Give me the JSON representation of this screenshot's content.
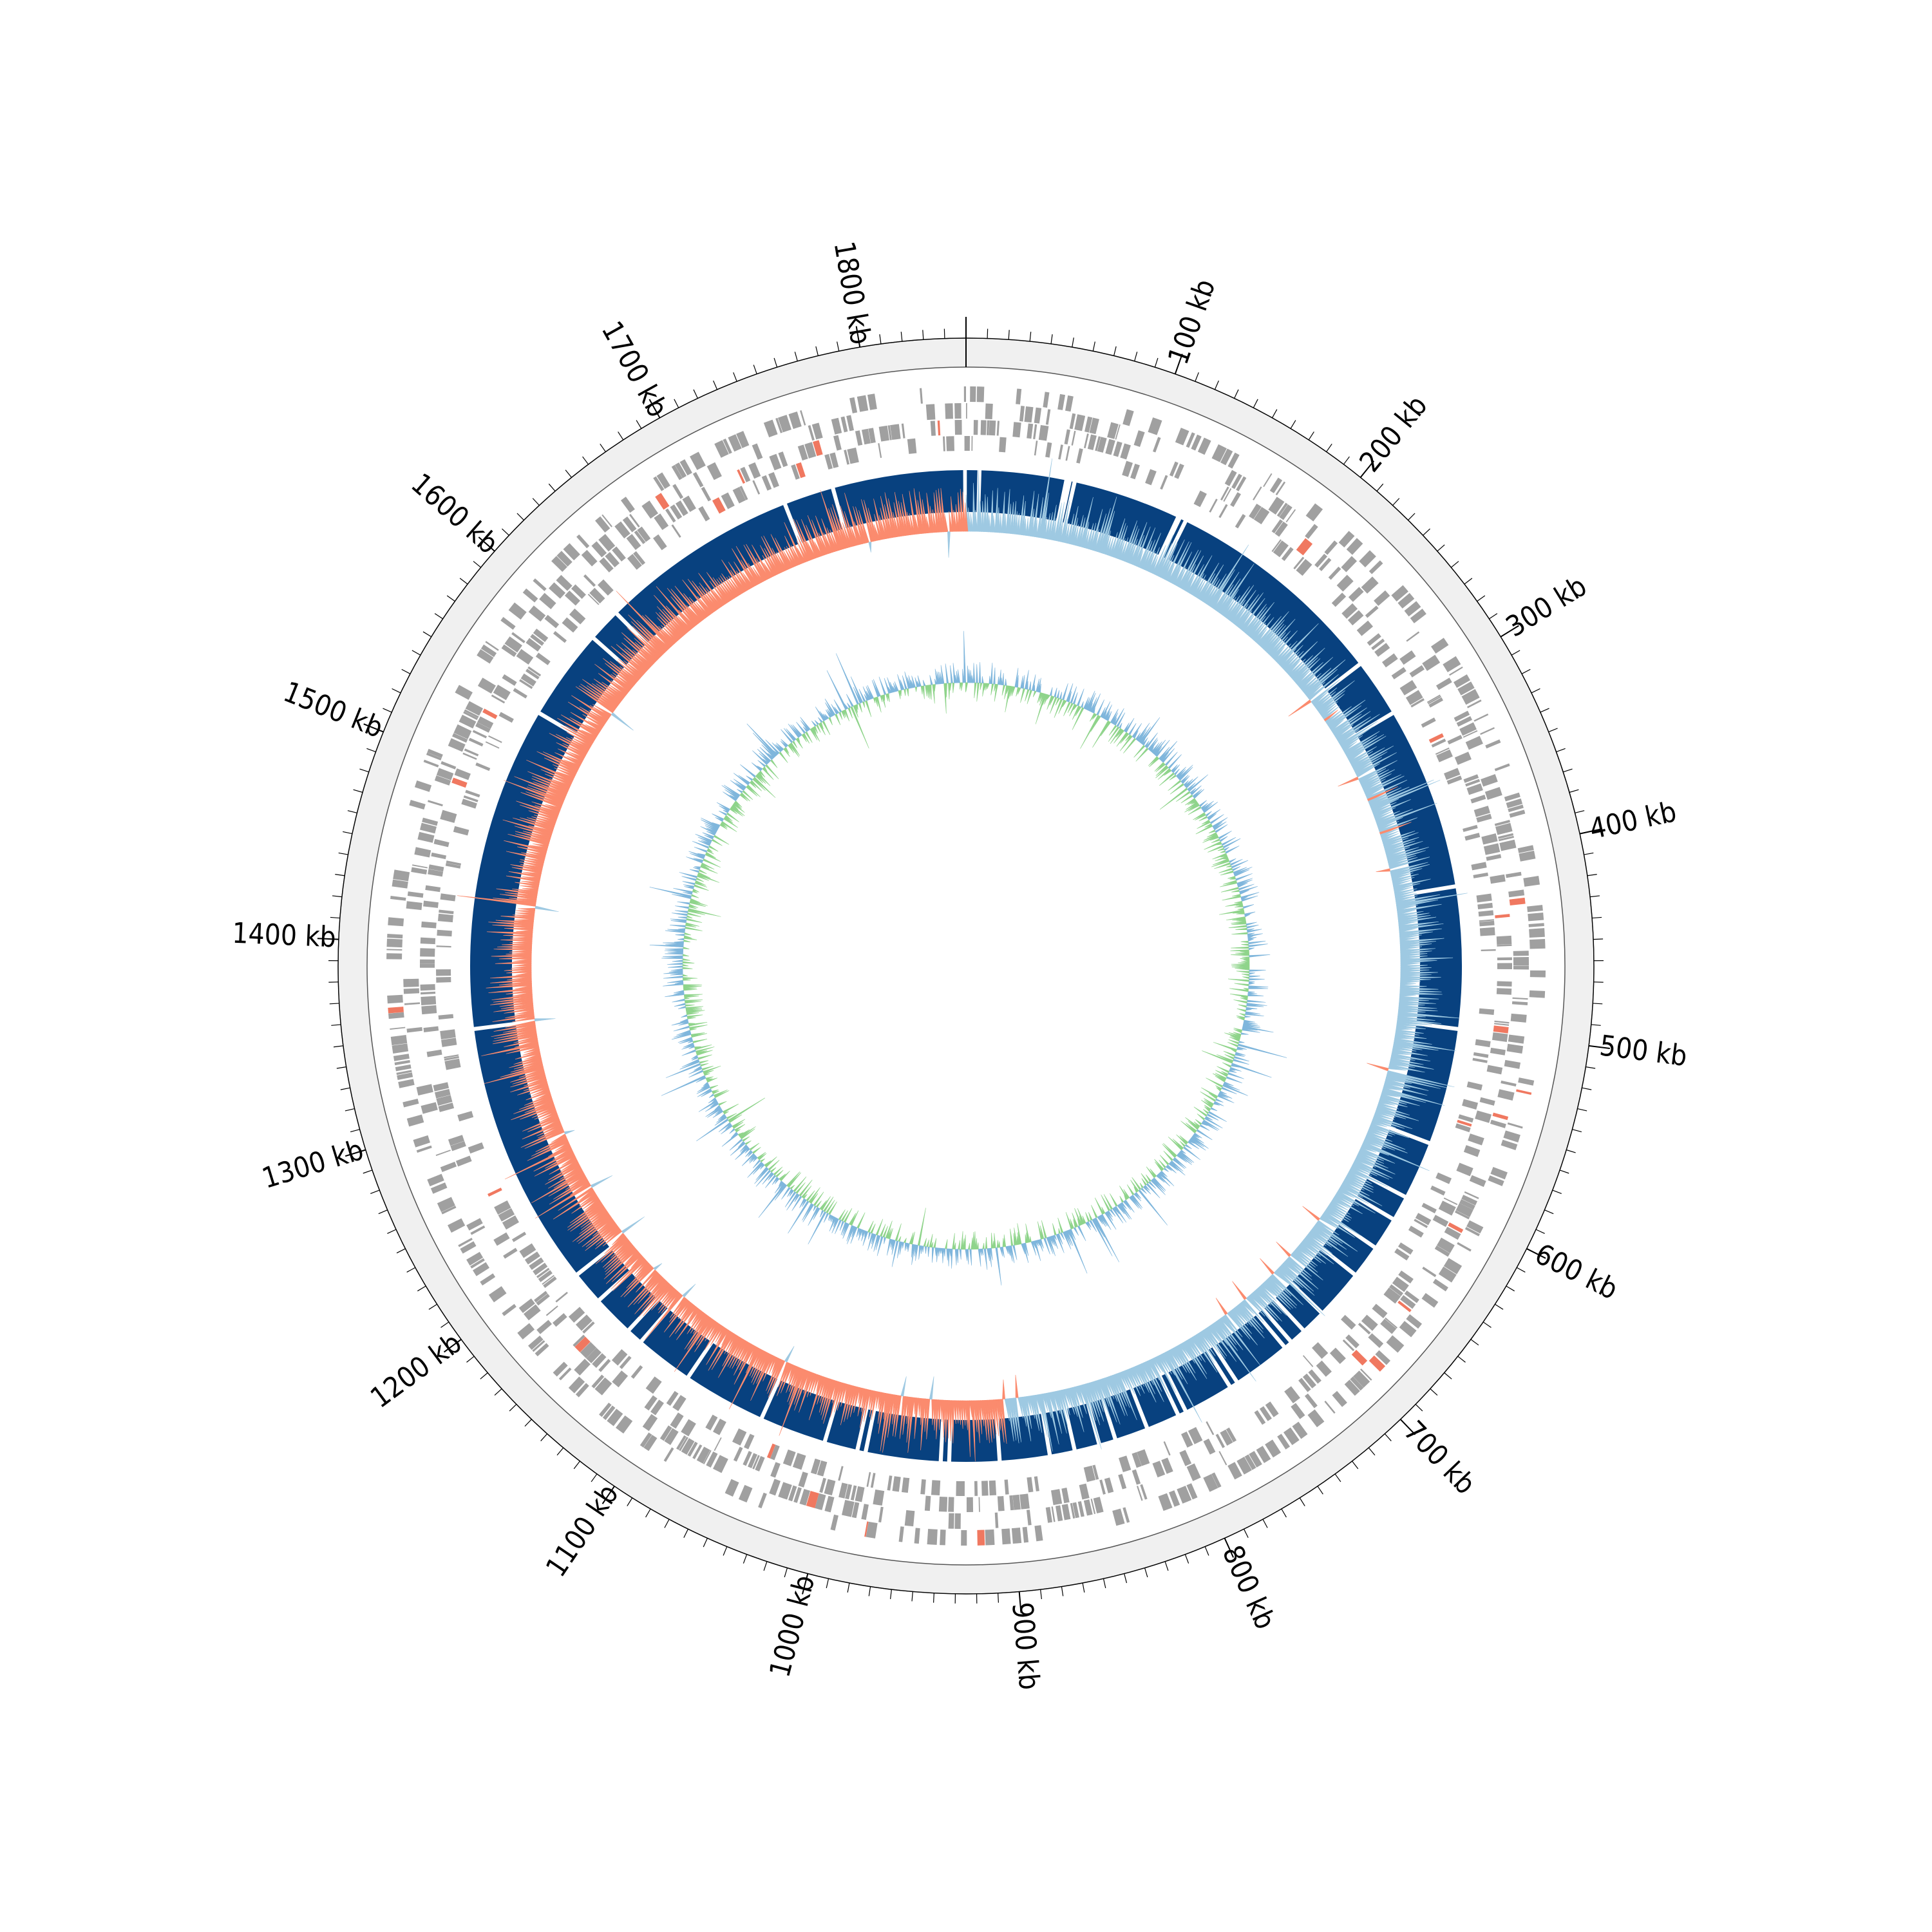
{
  "genome": {
    "length_kb": 1850,
    "major_tick_interval_kb": 100,
    "minor_tick_interval_kb": 10
  },
  "ticks": [
    {
      "kb": 100,
      "label": "100 kb"
    },
    {
      "kb": 200,
      "label": "200 kb"
    },
    {
      "kb": 300,
      "label": "300 kb"
    },
    {
      "kb": 400,
      "label": "400 kb"
    },
    {
      "kb": 500,
      "label": "500 kb"
    },
    {
      "kb": 600,
      "label": "600 kb"
    },
    {
      "kb": 700,
      "label": "700 kb"
    },
    {
      "kb": 800,
      "label": "800 kb"
    },
    {
      "kb": 900,
      "label": "900 kb"
    },
    {
      "kb": 1000,
      "label": "1000 kb"
    },
    {
      "kb": 1100,
      "label": "1100 kb"
    },
    {
      "kb": 1200,
      "label": "1200 kb"
    },
    {
      "kb": 1300,
      "label": "1300 kb"
    },
    {
      "kb": 1400,
      "label": "1400 kb"
    },
    {
      "kb": 1500,
      "label": "1500 kb"
    },
    {
      "kb": 1600,
      "label": "1600 kb"
    },
    {
      "kb": 1700,
      "label": "1700 kb"
    },
    {
      "kb": 1800,
      "label": "1800 kb"
    }
  ],
  "colors": {
    "background_ring": "#f0f0f0",
    "gene_default": "#a0a0a0",
    "gene_highlight": "#f07860",
    "contig_block": "#08417f",
    "gc_skew_positive": "#9ec9e2",
    "gc_skew_negative": "#fb8b6e",
    "gc_content_above": "#7fb6dc",
    "gc_content_below": "#8fd48b",
    "axis": "#000000"
  },
  "contig_gaps_kb": [
    8,
    60,
    62,
    65,
    130,
    131,
    135,
    270,
    305,
    415,
    500,
    570,
    605,
    620,
    640,
    660,
    690,
    705,
    715,
    720,
    755,
    760,
    790,
    795,
    815,
    835,
    845,
    860,
    875,
    905,
    935,
    940,
    985,
    990,
    1010,
    1050,
    1100,
    1135,
    1145,
    1170,
    1190,
    1350,
    1545,
    1600,
    1620,
    1740,
    1770
  ]
}
